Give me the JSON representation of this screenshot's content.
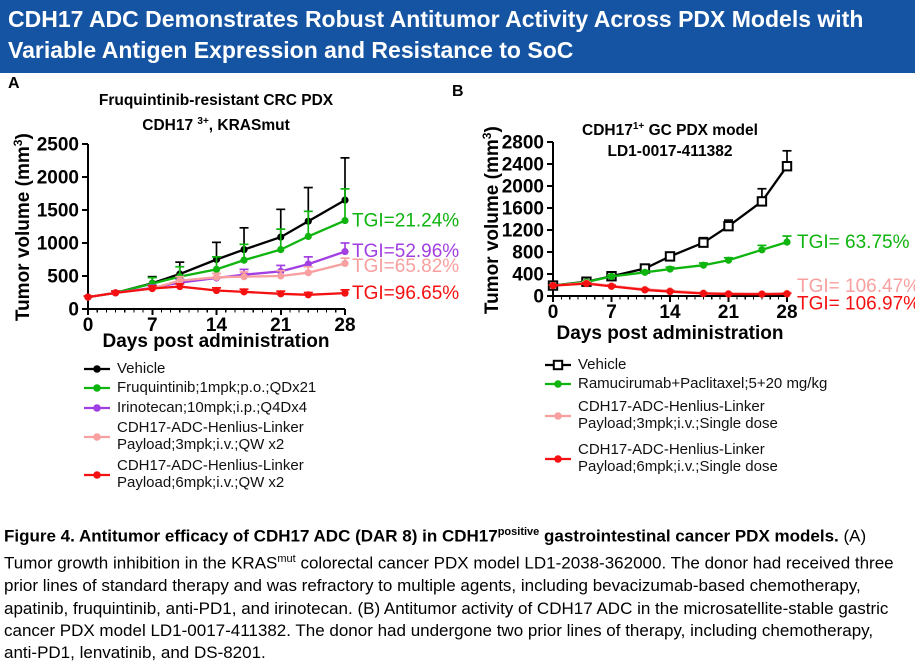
{
  "banner": {
    "title": "CDH17 ADC Demonstrates Robust Antitumor Activity Across PDX Models with Variable Antigen Expression and Resistance to SoC",
    "bg_color": "#1554A3",
    "text_color": "#FFFFFF"
  },
  "colors": {
    "vehicle": "#000000",
    "green": "#0FB40F",
    "purple": "#A23FE3",
    "pink": "#F89F9F",
    "red": "#F51111"
  },
  "panels": [
    {
      "label": "A",
      "title_line1": "Fruquintinib-resistant CRC PDX",
      "title_line2_pre": "CDH17 ",
      "title_line2_sup": "3+",
      "title_line2_post": ", KRASmut",
      "ylabel_pre": "Tumor volume (mm",
      "ylabel_sup": "3",
      "ylabel_post": ")",
      "xlabel": "Days post administration",
      "legend": [
        {
          "lines": [
            "Vehicle"
          ],
          "color": "#000000",
          "marker": "circle"
        },
        {
          "lines": [
            "Fruquintinib;1mpk;p.o.;QDx21"
          ],
          "color": "#0FB40F",
          "marker": "circle"
        },
        {
          "lines": [
            "Irinotecan;10mpk;i.p.;Q4Dx4"
          ],
          "color": "#A23FE3",
          "marker": "circle"
        },
        {
          "lines": [
            "CDH17-ADC-Henlius-Linker",
            "Payload;3mpk;i.v.;QW x2"
          ],
          "color": "#F89F9F",
          "marker": "circle"
        },
        {
          "lines": [
            "CDH17-ADC-Henlius-Linker",
            "Payload;6mpk;i.v.;QW x2"
          ],
          "color": "#F51111",
          "marker": "circle"
        }
      ]
    },
    {
      "label": "B",
      "title_line1_pre": "CDH17",
      "title_line1_sup": "1+",
      "title_line1_post": " GC PDX model",
      "title_line2": "LD1-0017-411382",
      "ylabel_pre": "Tumor volume (mm",
      "ylabel_sup": "3",
      "ylabel_post": ")",
      "xlabel": "Days post administration",
      "legend": [
        {
          "lines": [
            "Vehicle"
          ],
          "color": "#000000",
          "marker": "square-open"
        },
        {
          "lines": [
            "Ramucirumab+Paclitaxel;5+20 mg/kg"
          ],
          "color": "#0FB40F",
          "marker": "circle"
        },
        {
          "lines": [
            "CDH17-ADC-Henlius-Linker",
            "Payload;3mpk;i.v.;Single dose"
          ],
          "color": "#F89F9F",
          "marker": "circle"
        },
        {
          "lines": [
            "CDH17-ADC-Henlius-Linker",
            "Payload;6mpk;i.v.;Single dose"
          ],
          "color": "#F51111",
          "marker": "circle"
        }
      ]
    }
  ],
  "chart_data": [
    {
      "type": "line",
      "panel": "A",
      "title": "Fruquintinib-resistant CRC PDX CDH17 3+, KRASmut",
      "xlabel": "Days post administration",
      "ylabel": "Tumor volume (mm3)",
      "xlim": [
        0,
        28
      ],
      "ylim": [
        0,
        2500
      ],
      "xticks": [
        0,
        7,
        14,
        21,
        28
      ],
      "yticks": [
        0,
        500,
        1000,
        1500,
        2000,
        2500
      ],
      "x_minor_step": 1,
      "grid": false,
      "x": [
        0,
        3,
        7,
        10,
        14,
        17,
        21,
        24,
        28
      ],
      "series": [
        {
          "name": "Vehicle",
          "color": "#000000",
          "marker": "circle",
          "values": [
            180,
            245,
            390,
            530,
            750,
            900,
            1090,
            1330,
            1650
          ],
          "err_up": [
            20,
            30,
            100,
            180,
            260,
            330,
            420,
            510,
            640
          ]
        },
        {
          "name": "Fruquintinib;1mpk;p.o.;QDx21",
          "color": "#0FB40F",
          "marker": "circle",
          "values": [
            180,
            245,
            385,
            490,
            600,
            740,
            900,
            1100,
            1340
          ],
          "err_up": [
            20,
            30,
            90,
            150,
            190,
            240,
            310,
            380,
            480
          ]
        },
        {
          "name": "Irinotecan;10mpk;i.p.;Q4Dx4",
          "color": "#A23FE3",
          "marker": "circle",
          "values": [
            180,
            245,
            320,
            400,
            470,
            520,
            570,
            680,
            870
          ],
          "err_up": [
            15,
            25,
            40,
            50,
            70,
            80,
            90,
            110,
            130
          ]
        },
        {
          "name": "CDH17-ADC-Henlius-Linker Payload;3mpk;i.v.;QW x2",
          "color": "#F89F9F",
          "marker": "circle",
          "values": [
            180,
            245,
            310,
            430,
            480,
            490,
            500,
            550,
            690
          ],
          "err_up": [
            15,
            25,
            40,
            60,
            60,
            70,
            80,
            90,
            80
          ]
        },
        {
          "name": "CDH17-ADC-Henlius-Linker Payload;6mpk;i.v.;QW x2",
          "color": "#F51111",
          "marker": "circle",
          "values": [
            180,
            245,
            310,
            340,
            280,
            260,
            230,
            215,
            240
          ],
          "err_up": [
            15,
            25,
            40,
            40,
            40,
            40,
            40,
            35,
            50
          ]
        }
      ],
      "tgi_labels": [
        {
          "text": "TGI=21.24%",
          "color": "#0FB40F",
          "y_value": 1340
        },
        {
          "text": "TGI=52.96%",
          "color": "#A23FE3",
          "y_value": 880
        },
        {
          "text": "TGI=65.82%",
          "color": "#F89F9F",
          "y_value": 655
        },
        {
          "text": "TGI=96.65%",
          "color": "#F51111",
          "y_value": 245
        }
      ]
    },
    {
      "type": "line",
      "panel": "B",
      "title": "CDH17 1+ GC PDX model LD1-0017-411382",
      "xlabel": "Days post administration",
      "ylabel": "Tumor volume (mm3)",
      "xlim": [
        0,
        28
      ],
      "ylim": [
        0,
        2800
      ],
      "xticks": [
        0,
        7,
        14,
        21,
        28
      ],
      "yticks": [
        0,
        400,
        800,
        1200,
        1600,
        2000,
        2400,
        2800
      ],
      "x_minor_step": 1,
      "grid": false,
      "x": [
        0,
        4,
        7,
        11,
        14,
        18,
        21,
        25,
        28
      ],
      "series": [
        {
          "name": "Vehicle",
          "color": "#000000",
          "marker": "square-open",
          "values": [
            190,
            260,
            360,
            500,
            720,
            970,
            1270,
            1720,
            2360
          ],
          "err_up": [
            15,
            25,
            35,
            45,
            70,
            90,
            110,
            230,
            280
          ]
        },
        {
          "name": "Ramucirumab+Paclitaxel;5+20 mg/kg",
          "color": "#0FB40F",
          "marker": "circle",
          "values": [
            190,
            255,
            355,
            430,
            490,
            560,
            650,
            840,
            980
          ],
          "err_up": [
            12,
            18,
            25,
            30,
            35,
            40,
            45,
            80,
            110
          ]
        },
        {
          "name": "CDH17-ADC-Henlius-Linker Payload;3mpk;i.v.;Single dose",
          "color": "#F89F9F",
          "marker": "circle",
          "values": [
            190,
            235,
            185,
            120,
            95,
            55,
            45,
            42,
            48
          ],
          "err_up": [
            12,
            18,
            20,
            18,
            15,
            12,
            10,
            10,
            14
          ]
        },
        {
          "name": "CDH17-ADC-Henlius-Linker Payload;6mpk;i.v.;Single dose",
          "color": "#F51111",
          "marker": "circle",
          "values": [
            190,
            225,
            175,
            110,
            80,
            45,
            35,
            32,
            38
          ],
          "err_up": [
            12,
            15,
            18,
            15,
            12,
            10,
            8,
            8,
            10
          ]
        }
      ],
      "tgi_labels": [
        {
          "text": "TGI= 63.75%",
          "color": "#0FB40F",
          "y_value": 980
        },
        {
          "text": "TGI= 106.47%",
          "color": "#F89F9F",
          "y_value": 185
        },
        {
          "text": "TGI= 106.97%",
          "color": "#F51111",
          "y_value": -135
        }
      ]
    }
  ],
  "caption": {
    "bold_pre": "Figure 4. Antitumor efficacy of CDH17 ADC (DAR 8) in CDH17",
    "bold_sup": "positive",
    "bold_post": " gastrointestinal cancer PDX models.",
    "body_pre": " (A) Tumor growth inhibition in the KRAS",
    "body_sup": "mut",
    "body_post": " colorectal cancer PDX model LD1-2038-362000. The donor had received three prior lines of standard therapy and was refractory to multiple agents, including bevacizumab-based chemotherapy, apatinib, fruquintinib, anti-PD1, and irinotecan. (B) Antitumor activity of CDH17 ADC in the microsatellite-stable gastric cancer PDX model LD1-0017-411382. The donor had undergone two prior lines of therapy, including chemotherapy, anti-PD1, lenvatinib, and DS-8201."
  }
}
